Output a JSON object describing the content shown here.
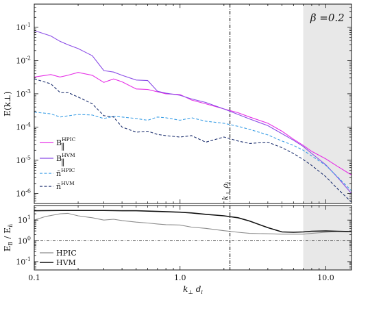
{
  "chart_data": [
    {
      "type": "line",
      "panel": "top",
      "ylabel": "E(k⊥)",
      "yscale": "log",
      "xscale": "log",
      "xlim": [
        0.1,
        15.0
      ],
      "ylim": [
        5e-07,
        0.5
      ],
      "yticks": [
        1e-06,
        1e-05,
        0.0001,
        0.001,
        0.01,
        0.1
      ],
      "ytick_labels": [
        {
          "base": "10",
          "exp": "-6"
        },
        {
          "base": "10",
          "exp": "-5"
        },
        {
          "base": "10",
          "exp": "-4"
        },
        {
          "base": "10",
          "exp": "-3"
        },
        {
          "base": "10",
          "exp": "-2"
        },
        {
          "base": "10",
          "exp": "-1"
        }
      ],
      "annotation": "β =0.2",
      "vline": {
        "x": 2.2,
        "label": "k⊥ρi"
      },
      "shaded_region": [
        7.0,
        15.0
      ],
      "series": [
        {
          "name": "B‖ HPIC",
          "legend_main": "B",
          "legend_sub": "‖",
          "legend_sup": "HPIC",
          "color": "#e62ee6",
          "dash": "solid",
          "x": [
            0.1,
            0.13,
            0.15,
            0.17,
            0.2,
            0.25,
            0.3,
            0.35,
            0.4,
            0.5,
            0.6,
            0.7,
            0.8,
            1.0,
            1.2,
            1.5,
            2.0,
            2.5,
            3.0,
            4.0,
            5.0,
            6.0,
            7.0,
            8.0,
            10.0,
            12.0,
            15.0
          ],
          "y": [
            0.0032,
            0.0038,
            0.0032,
            0.0036,
            0.0044,
            0.0036,
            0.0022,
            0.0028,
            0.0023,
            0.0014,
            0.00135,
            0.00115,
            0.001,
            0.00095,
            0.00065,
            0.0005,
            0.00035,
            0.00027,
            0.0002,
            0.00013,
            7.5e-05,
            4.3e-05,
            2.8e-05,
            1.85e-05,
            1.1e-05,
            6.6e-06,
            3.6e-06
          ]
        },
        {
          "name": "B‖ HVM",
          "legend_main": "B",
          "legend_sub": "‖",
          "legend_sup": "HVM",
          "color": "#8a4be6",
          "dash": "solid",
          "x": [
            0.1,
            0.13,
            0.15,
            0.17,
            0.2,
            0.25,
            0.3,
            0.35,
            0.4,
            0.5,
            0.6,
            0.7,
            0.8,
            1.0,
            1.2,
            1.5,
            2.0,
            2.5,
            3.0,
            4.0,
            5.0,
            6.0,
            7.0,
            8.0,
            10.0,
            12.0,
            15.0
          ],
          "y": [
            0.08,
            0.055,
            0.038,
            0.03,
            0.023,
            0.014,
            0.005,
            0.0045,
            0.0036,
            0.0026,
            0.0025,
            0.0012,
            0.00105,
            0.0009,
            0.0007,
            0.00055,
            0.00035,
            0.00024,
            0.000175,
            0.00011,
            6.3e-05,
            4e-05,
            2.6e-05,
            1.6e-05,
            7.3e-06,
            3.1e-06,
            1e-06
          ]
        },
        {
          "name": "ñ HPIC",
          "legend_main": "ñ",
          "legend_sub": "",
          "legend_sup": "HPIC",
          "color": "#3a9ee6",
          "dash": "4,2.5",
          "x": [
            0.1,
            0.13,
            0.15,
            0.2,
            0.25,
            0.3,
            0.35,
            0.4,
            0.5,
            0.6,
            0.7,
            0.8,
            1.0,
            1.2,
            1.5,
            2.0,
            2.5,
            3.0,
            4.0,
            5.0,
            6.0,
            7.0,
            8.0,
            10.0,
            12.0,
            15.0
          ],
          "y": [
            0.00028,
            0.00025,
            0.0002,
            0.00024,
            0.00023,
            0.00018,
            0.00021,
            0.0002,
            0.00018,
            0.00016,
            0.0002,
            0.00019,
            0.00016,
            0.00019,
            0.00015,
            0.00013,
            0.000105,
            8.5e-05,
            5.8e-05,
            3.8e-05,
            2.8e-05,
            2e-05,
            1.35e-05,
            7e-06,
            3.2e-06,
            1.2e-06
          ]
        },
        {
          "name": "ñ HVM",
          "legend_main": "ñ",
          "legend_sub": "",
          "legend_sup": "HVM",
          "color": "#1c2f6e",
          "dash": "4,2.5",
          "x": [
            0.1,
            0.13,
            0.15,
            0.17,
            0.2,
            0.25,
            0.3,
            0.35,
            0.4,
            0.5,
            0.6,
            0.7,
            0.8,
            1.0,
            1.2,
            1.5,
            2.0,
            2.5,
            3.0,
            4.0,
            5.0,
            6.0,
            7.0,
            8.0,
            10.0,
            12.0,
            15.0
          ],
          "y": [
            0.0028,
            0.002,
            0.0011,
            0.0011,
            0.0008,
            0.0005,
            0.00022,
            0.0002,
            0.0001,
            7e-05,
            7.5e-05,
            6e-05,
            5.5e-05,
            5e-05,
            5.5e-05,
            3.5e-05,
            5e-05,
            3.8e-05,
            3.2e-05,
            3.5e-05,
            2.4e-05,
            1.6e-05,
            1.05e-05,
            7e-06,
            3.2e-06,
            1.4e-06,
            5.5e-07
          ]
        }
      ]
    },
    {
      "type": "line",
      "panel": "bottom",
      "xlabel": "k⊥di",
      "ylabel": "EB / Eñ",
      "yscale": "log",
      "xscale": "log",
      "xlim": [
        0.1,
        15.0
      ],
      "ylim": [
        0.04,
        50
      ],
      "xticks": [
        0.1,
        1.0,
        10.0
      ],
      "xtick_labels": [
        "0.1",
        "1.0",
        "10.0"
      ],
      "yticks": [
        0.1,
        1.0,
        10.0
      ],
      "ytick_labels": [
        {
          "base": "10",
          "exp": "-1"
        },
        {
          "base": "10",
          "exp": "0"
        },
        {
          "base": "10",
          "exp": "1"
        }
      ],
      "hline": {
        "y": 1.0,
        "dash": "dashdot"
      },
      "vline": {
        "x": 2.2
      },
      "shaded_region": [
        7.0,
        15.0
      ],
      "series": [
        {
          "name": "HPIC",
          "color": "#8c8c8c",
          "dash": "solid",
          "x": [
            0.1,
            0.12,
            0.15,
            0.17,
            0.2,
            0.25,
            0.3,
            0.35,
            0.4,
            0.5,
            0.6,
            0.7,
            0.8,
            1.0,
            1.2,
            1.5,
            2.0,
            2.5,
            3.0,
            4.0,
            5.0,
            6.0,
            7.0,
            8.0,
            10.0,
            12.0,
            15.0
          ],
          "y": [
            10,
            15,
            20,
            21,
            16,
            13,
            10,
            11,
            9.5,
            8,
            7.2,
            6.5,
            6.0,
            5.8,
            4.6,
            4.0,
            3.1,
            2.6,
            2.3,
            2.2,
            2.1,
            2.1,
            2.1,
            2.3,
            2.6,
            2.8,
            2.8
          ]
        },
        {
          "name": "HVM",
          "color": "#111111",
          "dash": "solid",
          "x": [
            0.1,
            0.15,
            0.2,
            0.3,
            0.4,
            0.5,
            0.7,
            1.0,
            1.2,
            1.5,
            2.0,
            2.5,
            3.0,
            4.0,
            5.0,
            6.0,
            7.0,
            8.0,
            10.0,
            12.0,
            15.0
          ],
          "y": [
            28,
            29,
            29,
            29,
            28,
            28,
            26,
            24,
            22,
            19,
            16,
            13,
            9.0,
            4.3,
            2.7,
            2.6,
            2.7,
            2.9,
            3.0,
            2.9,
            2.8
          ]
        }
      ]
    }
  ]
}
